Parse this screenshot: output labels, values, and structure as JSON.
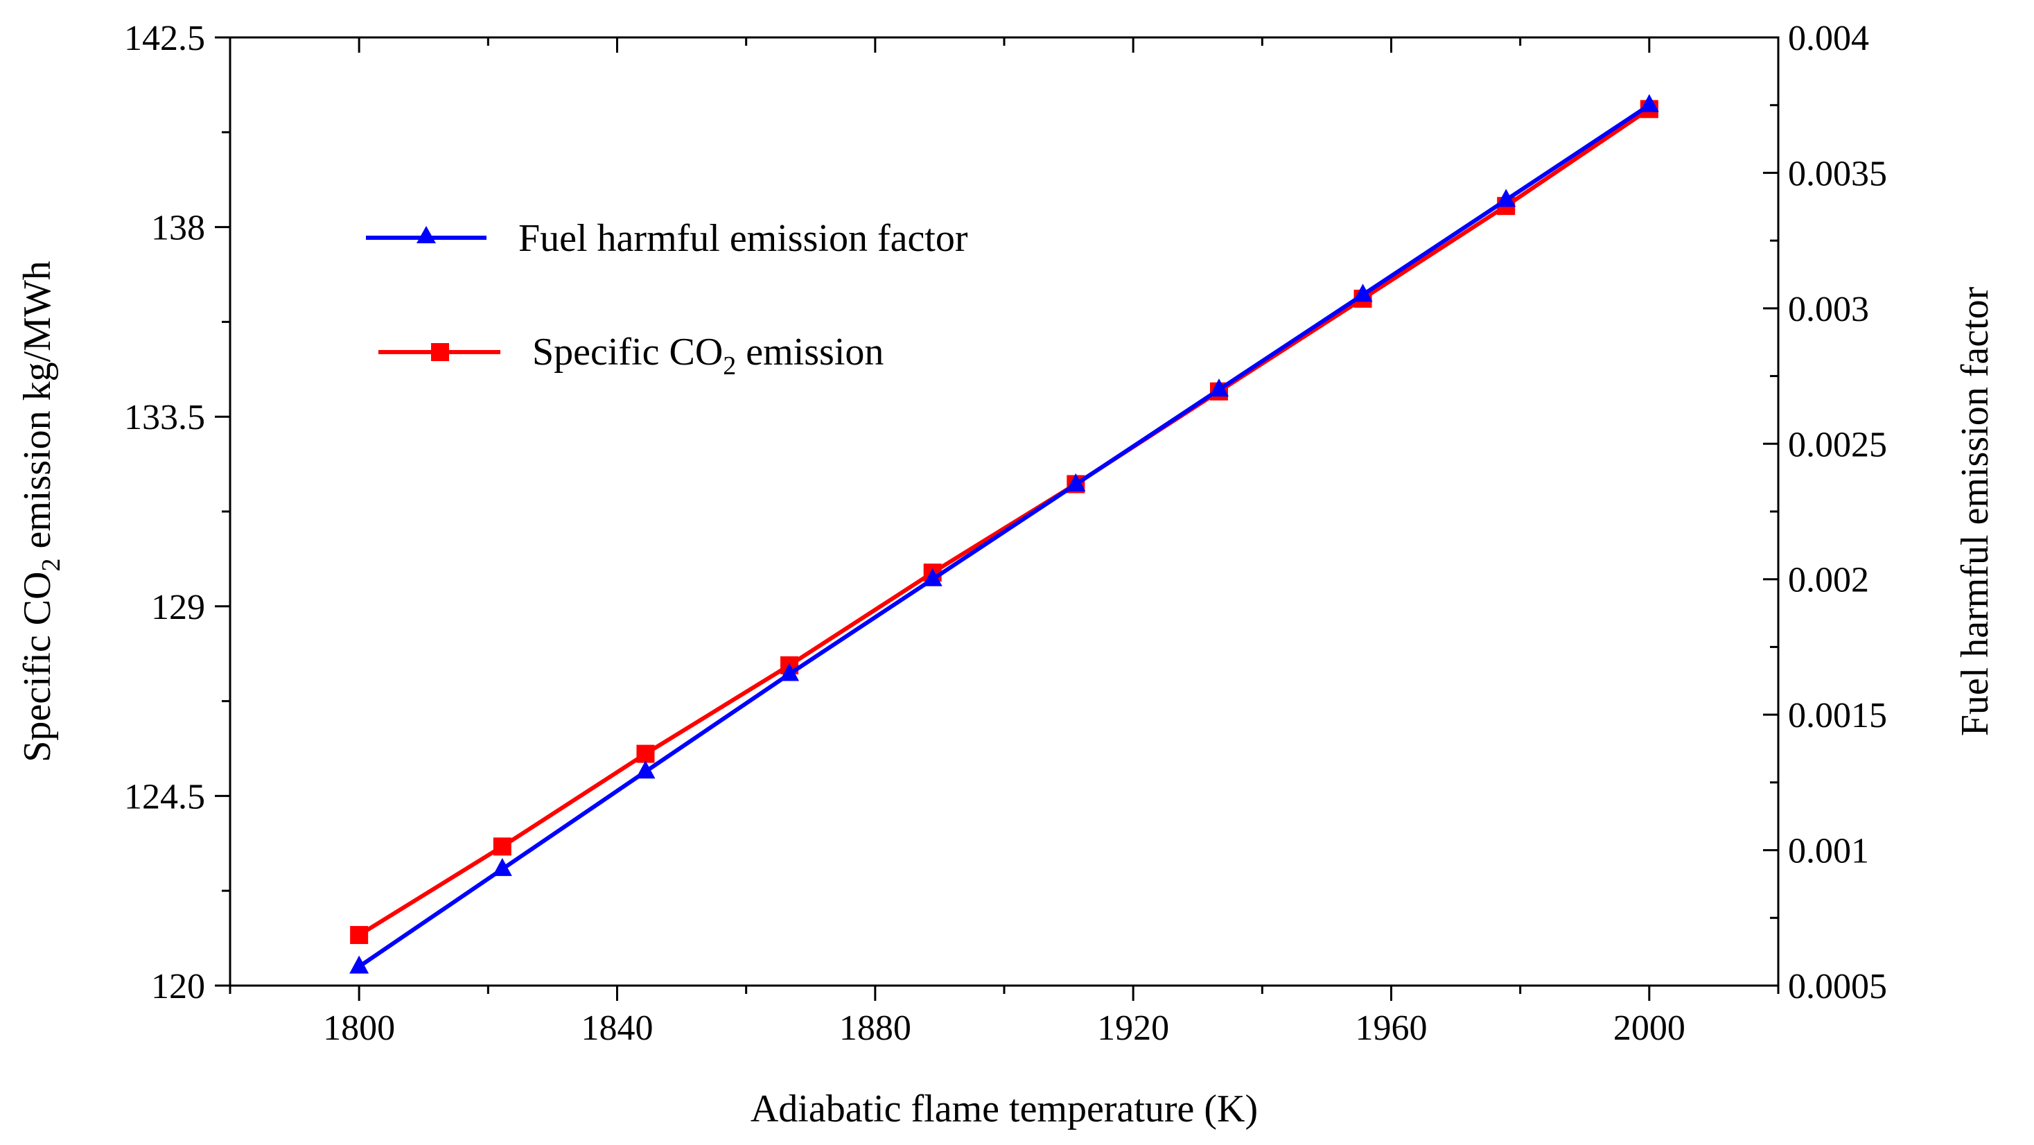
{
  "chart_data": {
    "type": "line",
    "title": "",
    "xlabel": "Adiabatic flame temperature (K)",
    "ylabel_left": {
      "prefix": "Specific CO",
      "sub": "2",
      "suffix": " emission kg/MWh"
    },
    "ylabel_right": "Fuel harmful emission factor",
    "xlim": [
      1780,
      2020
    ],
    "ylim_left": [
      120,
      142.5
    ],
    "ylim_right": [
      0.0005,
      0.004
    ],
    "x_ticks": [
      1800,
      1840,
      1880,
      1920,
      1960,
      2000
    ],
    "y_left_ticks": [
      "120",
      "124.5",
      "129",
      "133.5",
      "138",
      "142.5"
    ],
    "y_right_ticks": [
      "0.0005",
      "0.001",
      "0.0015",
      "0.002",
      "0.0025",
      "0.003",
      "0.0035",
      "0.004"
    ],
    "legend_position": "upper-left",
    "series": [
      {
        "name": "Fuel harmful emission factor",
        "axis": "right",
        "color": "#0000ff",
        "marker": "triangle",
        "x": [
          1800,
          1822.2,
          1844.4,
          1866.7,
          1888.9,
          1911.1,
          1933.3,
          1955.6,
          1977.8,
          2000
        ],
        "values": [
          0.00057,
          0.00093,
          0.00129,
          0.00165,
          0.002,
          0.00235,
          0.0027,
          0.00305,
          0.0034,
          0.00375
        ]
      },
      {
        "name": "Specific CO2 emission",
        "legend": {
          "prefix": "Specific CO",
          "sub": "2",
          "suffix": " emission"
        },
        "axis": "left",
        "color": "#ff0000",
        "marker": "square",
        "x": [
          1800,
          1822.2,
          1844.4,
          1866.7,
          1888.9,
          1911.1,
          1933.3,
          1955.6,
          1977.8,
          2000
        ],
        "values": [
          121.2,
          123.3,
          125.5,
          127.6,
          129.8,
          131.9,
          134.1,
          136.3,
          138.5,
          140.8
        ]
      }
    ]
  }
}
